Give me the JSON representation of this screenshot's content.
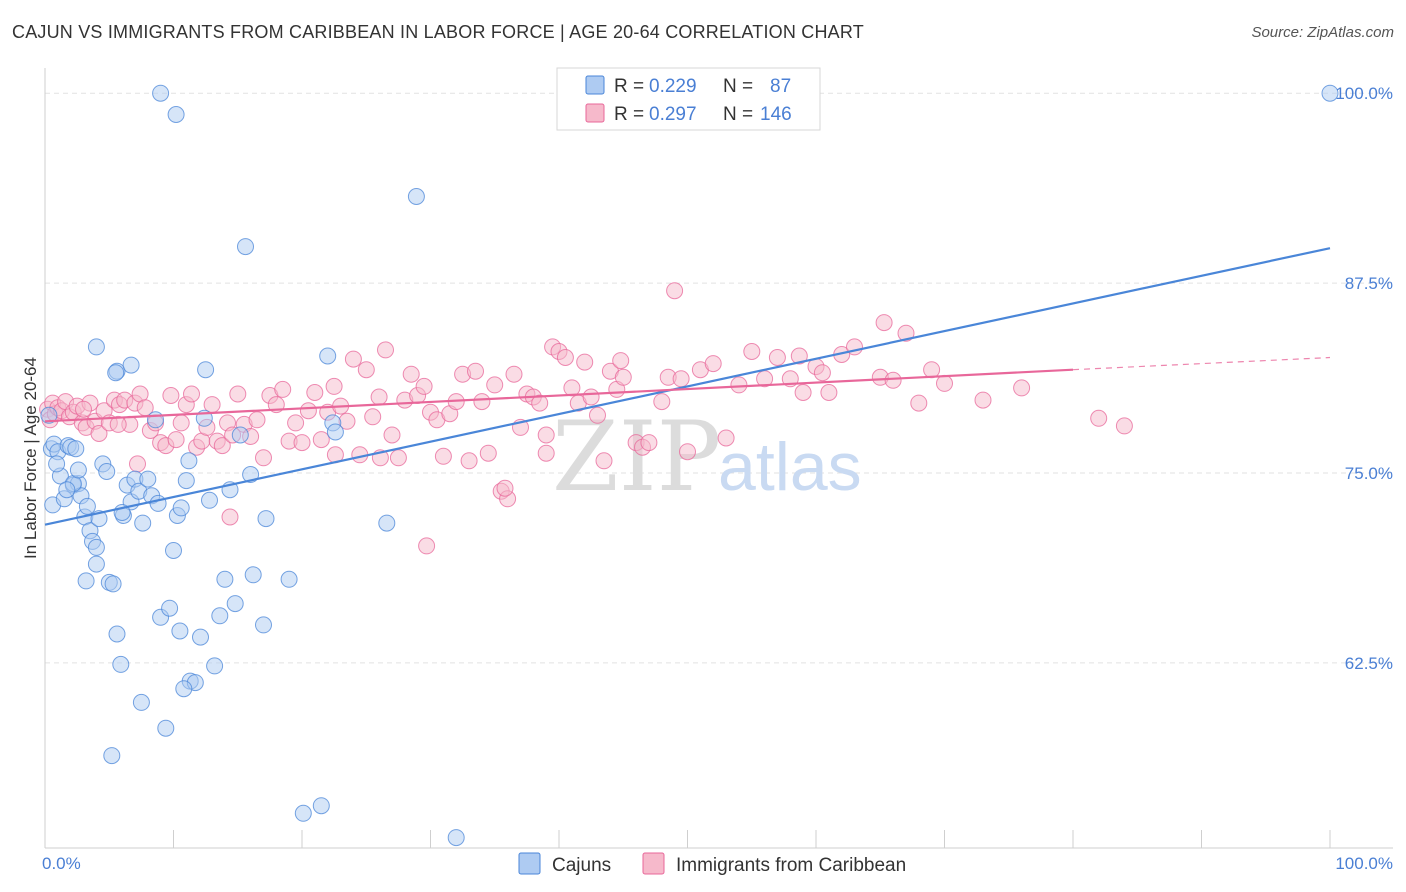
{
  "header": {
    "title": "CAJUN VS IMMIGRANTS FROM CARIBBEAN IN LABOR FORCE | AGE 20-64 CORRELATION CHART",
    "source": "Source: ZipAtlas.com"
  },
  "watermark": {
    "zip": "ZIP",
    "atlas": "atlas"
  },
  "legend": {
    "rows": [
      {
        "r_label": "R =",
        "r_value": "0.229",
        "n_label": "N =",
        "n_value": "87",
        "color": "#aecbf2"
      },
      {
        "r_label": "R =",
        "r_value": "0.297",
        "n_label": "N =",
        "n_value": "146",
        "color": "#f6b9cb"
      }
    ]
  },
  "bottom_legend": {
    "items": [
      {
        "label": "Cajuns",
        "color": "#aecbf2"
      },
      {
        "label": "Immigrants from Caribbean",
        "color": "#f6b9cb"
      }
    ]
  },
  "chart_data": {
    "type": "scatter",
    "title": "CAJUN VS IMMIGRANTS FROM CARIBBEAN IN LABOR FORCE | AGE 20-64 CORRELATION CHART",
    "xlabel": "",
    "ylabel": "In Labor Force | Age 20-64",
    "xlim": [
      0,
      100
    ],
    "ylim": [
      51.5,
      101
    ],
    "x_tick_labels": [
      "0.0%",
      "100.0%"
    ],
    "y_ticks": [
      62.5,
      75.0,
      87.5,
      100.0
    ],
    "y_tick_labels": [
      "62.5%",
      "75.0%",
      "87.5%",
      "100.0%"
    ],
    "grid": "horizontal dashed",
    "legend_position": "top-center",
    "series": [
      {
        "name": "Cajuns",
        "color": "#4a86d8",
        "fill": "#aecbf2",
        "trend": {
          "x0": 0,
          "y0": 71.6,
          "x1": 100,
          "y1": 89.8
        },
        "points": [
          [
            0.3,
            78.8
          ],
          [
            0.5,
            76.6
          ],
          [
            0.7,
            76.9
          ],
          [
            1.0,
            76.4
          ],
          [
            1.2,
            74.8
          ],
          [
            0.6,
            72.9
          ],
          [
            1.5,
            73.3
          ],
          [
            1.8,
            76.8
          ],
          [
            2.0,
            76.7
          ],
          [
            2.2,
            74.2
          ],
          [
            2.4,
            76.6
          ],
          [
            2.6,
            74.3
          ],
          [
            2.8,
            73.5
          ],
          [
            3.1,
            72.1
          ],
          [
            3.3,
            72.8
          ],
          [
            3.5,
            71.2
          ],
          [
            3.7,
            70.5
          ],
          [
            4.0,
            70.1
          ],
          [
            4.2,
            72.0
          ],
          [
            4.5,
            75.6
          ],
          [
            4.8,
            75.1
          ],
          [
            5.0,
            67.8
          ],
          [
            5.3,
            67.7
          ],
          [
            5.6,
            64.4
          ],
          [
            5.9,
            62.4
          ],
          [
            6.1,
            72.2
          ],
          [
            6.4,
            74.2
          ],
          [
            6.7,
            73.1
          ],
          [
            7.0,
            74.6
          ],
          [
            7.3,
            73.8
          ],
          [
            7.6,
            71.7
          ],
          [
            8.0,
            74.6
          ],
          [
            8.3,
            73.5
          ],
          [
            8.6,
            78.5
          ],
          [
            9.0,
            65.5
          ],
          [
            9.4,
            58.2
          ],
          [
            9.7,
            66.1
          ],
          [
            10.0,
            69.9
          ],
          [
            10.3,
            72.2
          ],
          [
            10.6,
            72.7
          ],
          [
            11.0,
            74.5
          ],
          [
            11.3,
            61.3
          ],
          [
            11.7,
            61.2
          ],
          [
            12.1,
            64.2
          ],
          [
            12.4,
            78.6
          ],
          [
            12.8,
            73.2
          ],
          [
            13.2,
            62.3
          ],
          [
            13.6,
            65.6
          ],
          [
            14.0,
            68.0
          ],
          [
            14.4,
            73.9
          ],
          [
            14.8,
            66.4
          ],
          [
            15.2,
            77.5
          ],
          [
            15.6,
            89.9
          ],
          [
            16.0,
            74.9
          ],
          [
            4.0,
            83.3
          ],
          [
            5.6,
            81.7
          ],
          [
            6.7,
            82.1
          ],
          [
            10.2,
            98.6
          ],
          [
            9.0,
            100.0
          ],
          [
            5.5,
            81.6
          ],
          [
            2.2,
            74.3
          ],
          [
            1.7,
            73.9
          ],
          [
            3.2,
            67.9
          ],
          [
            4.0,
            69.0
          ],
          [
            10.5,
            64.6
          ],
          [
            11.2,
            75.8
          ],
          [
            12.5,
            81.8
          ],
          [
            17.2,
            72.0
          ],
          [
            20.1,
            52.6
          ],
          [
            19.0,
            68.0
          ],
          [
            21.5,
            53.1
          ],
          [
            22.0,
            82.7
          ],
          [
            22.4,
            78.3
          ],
          [
            22.6,
            77.7
          ],
          [
            26.6,
            71.7
          ],
          [
            28.9,
            93.2
          ],
          [
            32.0,
            51.0
          ],
          [
            0.9,
            75.6
          ],
          [
            2.6,
            75.2
          ],
          [
            5.2,
            56.4
          ],
          [
            7.5,
            59.9
          ],
          [
            10.8,
            60.8
          ],
          [
            16.2,
            68.3
          ],
          [
            17.0,
            65.0
          ],
          [
            6.0,
            72.4
          ],
          [
            8.8,
            73.0
          ],
          [
            100.0,
            100.0
          ]
        ]
      },
      {
        "name": "Immigrants from Caribbean",
        "color": "#e8679a",
        "fill": "#f6b9cb",
        "trend": {
          "x0": 0,
          "y0": 78.4,
          "x1": 80.0,
          "y1": 81.8
        },
        "trend_dashed_to": {
          "x": 100,
          "y": 82.6
        },
        "points": [
          [
            0.2,
            79.2
          ],
          [
            0.4,
            78.5
          ],
          [
            0.6,
            79.6
          ],
          [
            0.8,
            78.9
          ],
          [
            1.0,
            79.3
          ],
          [
            1.3,
            79.1
          ],
          [
            1.6,
            79.7
          ],
          [
            1.9,
            78.7
          ],
          [
            2.2,
            79.0
          ],
          [
            2.5,
            79.4
          ],
          [
            2.9,
            78.3
          ],
          [
            3.2,
            78.0
          ],
          [
            3.5,
            79.6
          ],
          [
            3.9,
            78.4
          ],
          [
            4.2,
            77.6
          ],
          [
            4.6,
            79.1
          ],
          [
            5.0,
            78.3
          ],
          [
            5.4,
            79.8
          ],
          [
            5.8,
            79.5
          ],
          [
            6.2,
            79.8
          ],
          [
            6.6,
            78.2
          ],
          [
            7.0,
            79.6
          ],
          [
            7.4,
            80.2
          ],
          [
            7.8,
            79.3
          ],
          [
            8.2,
            77.8
          ],
          [
            8.6,
            78.3
          ],
          [
            9.0,
            77.0
          ],
          [
            9.4,
            76.8
          ],
          [
            9.8,
            80.1
          ],
          [
            10.2,
            77.2
          ],
          [
            10.6,
            78.3
          ],
          [
            11.0,
            79.5
          ],
          [
            11.4,
            80.2
          ],
          [
            11.8,
            76.7
          ],
          [
            12.2,
            77.1
          ],
          [
            12.6,
            78.0
          ],
          [
            13.0,
            79.5
          ],
          [
            13.4,
            77.1
          ],
          [
            13.8,
            76.8
          ],
          [
            14.2,
            78.3
          ],
          [
            14.6,
            77.5
          ],
          [
            15.0,
            80.2
          ],
          [
            15.5,
            78.2
          ],
          [
            16.0,
            77.4
          ],
          [
            16.5,
            78.5
          ],
          [
            17.0,
            76.0
          ],
          [
            17.5,
            80.1
          ],
          [
            18.0,
            79.5
          ],
          [
            18.5,
            80.5
          ],
          [
            19.0,
            77.1
          ],
          [
            19.5,
            78.3
          ],
          [
            20.0,
            77.0
          ],
          [
            20.5,
            79.1
          ],
          [
            21.0,
            80.3
          ],
          [
            21.5,
            77.2
          ],
          [
            22.0,
            79.0
          ],
          [
            22.5,
            80.7
          ],
          [
            23.0,
            79.4
          ],
          [
            23.5,
            78.4
          ],
          [
            24.0,
            82.5
          ],
          [
            24.5,
            76.2
          ],
          [
            25.0,
            81.8
          ],
          [
            25.5,
            78.7
          ],
          [
            26.0,
            80.0
          ],
          [
            26.5,
            83.1
          ],
          [
            27.0,
            77.5
          ],
          [
            27.5,
            76.0
          ],
          [
            28.0,
            79.8
          ],
          [
            28.5,
            81.5
          ],
          [
            29.0,
            80.1
          ],
          [
            29.5,
            80.7
          ],
          [
            30.0,
            79.0
          ],
          [
            30.5,
            78.5
          ],
          [
            31.0,
            76.1
          ],
          [
            31.5,
            78.9
          ],
          [
            32.0,
            79.7
          ],
          [
            32.5,
            81.5
          ],
          [
            33.0,
            75.8
          ],
          [
            33.5,
            81.7
          ],
          [
            34.0,
            79.7
          ],
          [
            34.5,
            76.3
          ],
          [
            35.0,
            80.8
          ],
          [
            35.5,
            73.8
          ],
          [
            36.0,
            73.3
          ],
          [
            36.5,
            81.5
          ],
          [
            37.0,
            78.0
          ],
          [
            37.5,
            80.2
          ],
          [
            38.0,
            80.0
          ],
          [
            38.5,
            79.6
          ],
          [
            39.0,
            77.5
          ],
          [
            39.5,
            83.3
          ],
          [
            40.0,
            83.0
          ],
          [
            40.5,
            82.6
          ],
          [
            41.0,
            80.6
          ],
          [
            41.5,
            79.6
          ],
          [
            42.0,
            82.3
          ],
          [
            42.5,
            80.0
          ],
          [
            43.0,
            78.8
          ],
          [
            43.5,
            75.8
          ],
          [
            44.0,
            81.7
          ],
          [
            44.5,
            80.5
          ],
          [
            45.0,
            81.3
          ],
          [
            46.0,
            77.0
          ],
          [
            46.5,
            76.7
          ],
          [
            47.0,
            77.0
          ],
          [
            48.0,
            79.7
          ],
          [
            48.5,
            81.3
          ],
          [
            49.0,
            87.0
          ],
          [
            49.5,
            81.2
          ],
          [
            50.0,
            76.4
          ],
          [
            51.0,
            81.8
          ],
          [
            52.0,
            82.2
          ],
          [
            53.0,
            77.3
          ],
          [
            54.0,
            80.8
          ],
          [
            55.0,
            83.0
          ],
          [
            56.0,
            81.2
          ],
          [
            57.0,
            82.6
          ],
          [
            58.0,
            81.2
          ],
          [
            59.0,
            80.3
          ],
          [
            60.0,
            82.0
          ],
          [
            60.5,
            81.6
          ],
          [
            61.0,
            80.3
          ],
          [
            62.0,
            82.8
          ],
          [
            63.0,
            83.3
          ],
          [
            65.0,
            81.3
          ],
          [
            66.0,
            81.1
          ],
          [
            67.0,
            84.2
          ],
          [
            68.0,
            79.6
          ],
          [
            69.0,
            81.8
          ],
          [
            70.0,
            80.9
          ],
          [
            73.0,
            79.8
          ],
          [
            76.0,
            80.6
          ],
          [
            82.0,
            78.6
          ],
          [
            84.0,
            78.1
          ],
          [
            3.0,
            79.2
          ],
          [
            5.7,
            78.2
          ],
          [
            7.2,
            75.6
          ],
          [
            14.4,
            72.1
          ],
          [
            22.6,
            76.2
          ],
          [
            26.1,
            76.0
          ],
          [
            29.7,
            70.2
          ],
          [
            35.8,
            74.0
          ],
          [
            39.0,
            76.3
          ],
          [
            44.8,
            82.4
          ],
          [
            58.7,
            82.7
          ],
          [
            65.3,
            84.9
          ]
        ]
      }
    ]
  }
}
